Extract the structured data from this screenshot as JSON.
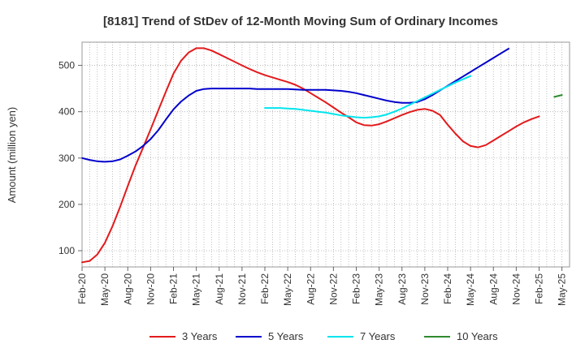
{
  "chart_data": {
    "type": "line",
    "title": "[8181]  Trend of StDev of 12-Month Moving Sum of Ordinary Incomes",
    "ylabel": "Amount (million yen)",
    "xlabel": "",
    "ylim": [
      65,
      550
    ],
    "yticks": [
      100,
      200,
      300,
      400,
      500
    ],
    "x_start": "Feb-20",
    "x_count_months": 64,
    "xtick_labels": [
      "Feb-20",
      "May-20",
      "Aug-20",
      "Nov-20",
      "Feb-21",
      "May-21",
      "Aug-21",
      "Nov-21",
      "Feb-22",
      "May-22",
      "Aug-22",
      "Nov-22",
      "Feb-23",
      "May-23",
      "Aug-23",
      "Nov-23",
      "Feb-24",
      "May-24",
      "Aug-24",
      "Nov-24",
      "Feb-25",
      "May-25"
    ],
    "grid": true,
    "legend_position": "bottom",
    "series": [
      {
        "name": "3 Years",
        "color": "#e31a1c",
        "start_index": 0,
        "values": [
          75,
          78,
          92,
          117,
          153,
          195,
          240,
          283,
          322,
          362,
          403,
          443,
          482,
          510,
          528,
          537,
          537,
          532,
          524,
          516,
          508,
          500,
          492,
          485,
          479,
          474,
          469,
          464,
          458,
          450,
          440,
          430,
          420,
          409,
          398,
          388,
          377,
          371,
          370,
          373,
          379,
          386,
          393,
          399,
          404,
          406,
          402,
          393,
          372,
          353,
          336,
          326,
          323,
          328,
          338,
          348,
          358,
          368,
          377,
          384,
          390
        ]
      },
      {
        "name": "5 Years",
        "color": "#0000cc",
        "start_index": 0,
        "values": [
          300,
          296,
          293,
          292,
          293,
          297,
          305,
          314,
          326,
          341,
          360,
          383,
          405,
          422,
          435,
          445,
          449,
          450,
          450,
          450,
          450,
          450,
          450,
          449,
          449,
          449,
          449,
          449,
          448,
          447,
          447,
          447,
          447,
          446,
          445,
          443,
          440,
          436,
          432,
          428,
          424,
          421,
          419,
          419,
          421,
          427,
          436,
          446,
          456,
          466,
          476,
          486,
          496,
          506,
          516,
          526,
          536
        ]
      },
      {
        "name": "7 Years",
        "color": "#00e5ee",
        "start_index": 24,
        "values": [
          408,
          408,
          408,
          407,
          406,
          404,
          402,
          400,
          398,
          395,
          392,
          390,
          388,
          387,
          388,
          390,
          394,
          400,
          407,
          415,
          423,
          431,
          439,
          447,
          455,
          463,
          470,
          477
        ]
      },
      {
        "name": "10 Years",
        "color": "#2e8b2e",
        "start_index": 62,
        "values": [
          432,
          436
        ]
      }
    ]
  }
}
